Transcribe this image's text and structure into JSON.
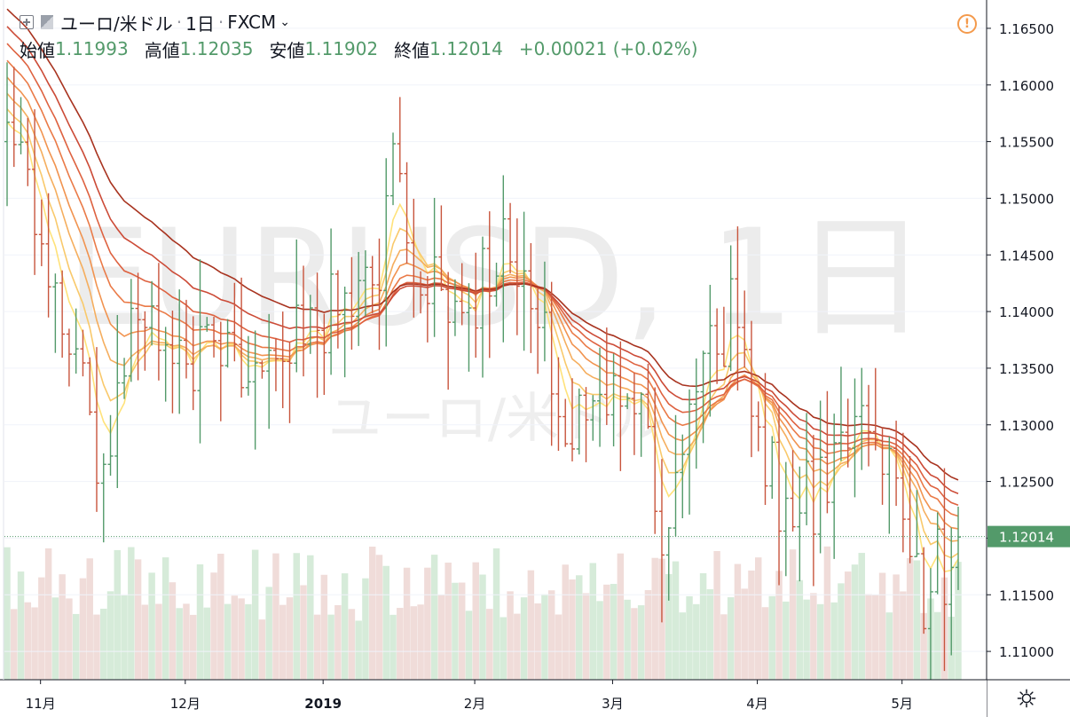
{
  "header": {
    "symbol": "ユーロ/米ドル",
    "interval": "1日",
    "exchange": "FXCM",
    "ohlc": {
      "open_label": "始値",
      "open": "1.11993",
      "high_label": "高値",
      "high": "1.12035",
      "low_label": "安値",
      "low": "1.11902",
      "close_label": "終値",
      "close": "1.12014",
      "change": "+0.00021 (+0.02%)"
    }
  },
  "watermark": {
    "main": "EURUSD, 1日",
    "sub": "ユーロ/米ドル"
  },
  "icons": {
    "add": "plus-square-icon",
    "flag": "flag-icon",
    "warning": "warning-icon",
    "settings": "gear-icon"
  },
  "colors": {
    "up": "#539a6a",
    "down": "#c8553d",
    "price_label_bg": "#539a6a"
  },
  "chart_data": {
    "type": "bar",
    "price_axis": {
      "ticks": [
        "1.16500",
        "1.16000",
        "1.15500",
        "1.15000",
        "1.14500",
        "1.14000",
        "1.13500",
        "1.13000",
        "1.12500",
        "1.12000",
        "1.11500",
        "1.11000"
      ],
      "ylim": [
        1.1075,
        1.1675
      ],
      "last_price_label": "1.12014",
      "last_price": 1.12014
    },
    "time_axis": {
      "labels": [
        {
          "text": "11月",
          "index": 10
        },
        {
          "text": "12月",
          "index": 31
        },
        {
          "text": "2019",
          "index": 51
        },
        {
          "text": "2月",
          "index": 73
        },
        {
          "text": "3月",
          "index": 93
        },
        {
          "text": "4月",
          "index": 114
        },
        {
          "text": "5月",
          "index": 135
        }
      ]
    },
    "bar_count": 139,
    "price_start": 1.155,
    "price_end": 1.1201,
    "ribbon_periods": [
      5,
      8,
      12,
      16,
      21,
      26,
      32,
      40
    ],
    "ribbon_colors": [
      "#ffe27a",
      "#f9c96b",
      "#f5ae5e",
      "#f1934f",
      "#ea7a47",
      "#de6240",
      "#cc4b37",
      "#a8331f"
    ],
    "volume_color_up": "#d6ebd9",
    "volume_color_down": "#f0dcd9"
  }
}
